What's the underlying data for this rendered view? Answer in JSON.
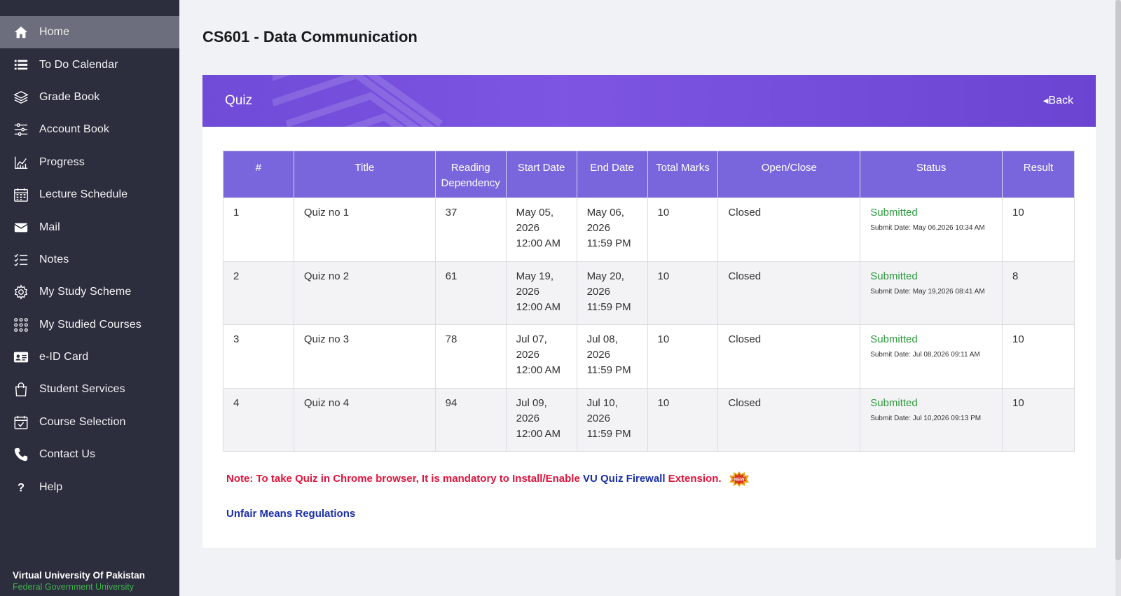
{
  "sidebar": {
    "items": [
      {
        "label": "Home",
        "icon": "home-icon",
        "active": true
      },
      {
        "label": "To Do Calendar",
        "icon": "list-icon"
      },
      {
        "label": "Grade Book",
        "icon": "layers-icon"
      },
      {
        "label": "Account Book",
        "icon": "sliders-icon"
      },
      {
        "label": "Progress",
        "icon": "chart-icon"
      },
      {
        "label": "Lecture Schedule",
        "icon": "calendar-grid-icon"
      },
      {
        "label": "Mail",
        "icon": "mail-icon"
      },
      {
        "label": "Notes",
        "icon": "checklist-icon"
      },
      {
        "label": "My Study Scheme",
        "icon": "gear-icon"
      },
      {
        "label": "My Studied Courses",
        "icon": "dots-grid-icon"
      },
      {
        "label": "e-ID Card",
        "icon": "id-card-icon"
      },
      {
        "label": "Student Services",
        "icon": "shopping-bag-icon"
      },
      {
        "label": "Course Selection",
        "icon": "calendar-check-icon"
      },
      {
        "label": "Contact Us",
        "icon": "phone-icon"
      },
      {
        "label": "Help",
        "icon": "question-icon"
      }
    ],
    "brand_name": "Virtual University Of Pakistan",
    "brand_sub": "Federal Government University"
  },
  "page": {
    "title": "CS601 - Data Communication",
    "card_title": "Quiz",
    "back_label": "Back"
  },
  "table": {
    "headers": [
      "#",
      "Title",
      "Reading Dependency",
      "Start Date",
      "End Date",
      "Total Marks",
      "Open/Close",
      "Status",
      "Result"
    ],
    "rows": [
      {
        "num": "1",
        "title": "Quiz no 1",
        "reading": "37",
        "start": [
          "May 05,",
          "2026",
          "12:00 AM"
        ],
        "end": [
          "May 06,",
          "2026",
          "11:59 PM"
        ],
        "marks": "10",
        "open_close": "Closed",
        "status": "Submitted",
        "submit_date": "Submit Date: May 06,2026 10:34 AM",
        "result": "10"
      },
      {
        "num": "2",
        "title": "Quiz no 2",
        "reading": "61",
        "start": [
          "May 19,",
          "2026",
          "12:00 AM"
        ],
        "end": [
          "May 20,",
          "2026",
          "11:59 PM"
        ],
        "marks": "10",
        "open_close": "Closed",
        "status": "Submitted",
        "submit_date": "Submit Date: May 19,2026 08:41 AM",
        "result": "8"
      },
      {
        "num": "3",
        "title": "Quiz no 3",
        "reading": "78",
        "start": [
          "Jul 07,",
          "2026",
          "12:00 AM"
        ],
        "end": [
          "Jul 08,",
          "2026",
          "11:59 PM"
        ],
        "marks": "10",
        "open_close": "Closed",
        "status": "Submitted",
        "submit_date": "Submit Date: Jul 08,2026 09:11 AM",
        "result": "10"
      },
      {
        "num": "4",
        "title": "Quiz no 4",
        "reading": "94",
        "start": [
          "Jul 09,",
          "2026",
          "12:00 AM"
        ],
        "end": [
          "Jul 10,",
          "2026",
          "11:59 PM"
        ],
        "marks": "10",
        "open_close": "Closed",
        "status": "Submitted",
        "submit_date": "Submit Date: Jul 10,2026 09:13 PM",
        "result": "10"
      }
    ]
  },
  "note": {
    "prefix": "Note: To take Quiz in Chrome browser, It is mandatory to Install/Enable ",
    "link": "VU Quiz Firewall",
    "suffix": " Extension.",
    "badge": "NEW"
  },
  "umr_label": "Unfair Means Regulations",
  "colors": {
    "sidebar_bg": "#2c2e3e",
    "header_purple": "#7a66dc",
    "open_green": "#2e9a3e",
    "close_red": "#d53a3a",
    "link_blue": "#1b2fa8"
  }
}
